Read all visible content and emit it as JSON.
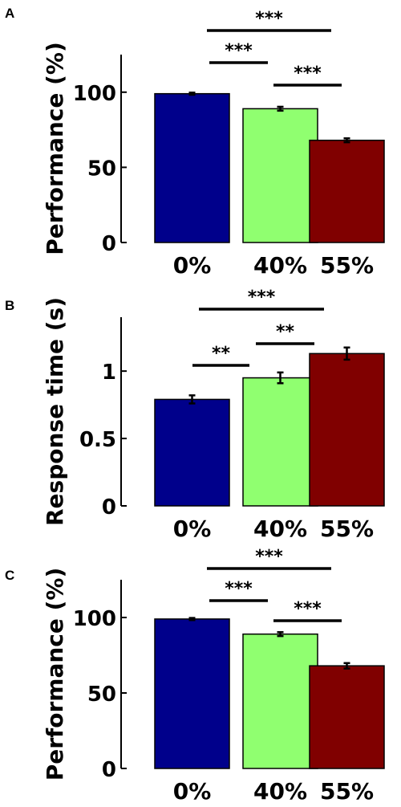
{
  "colors": {
    "bar_0": "#00008b",
    "bar_40": "#90ff70",
    "bar_55": "#800000"
  },
  "chart_data": [
    {
      "panel": "A",
      "type": "bar",
      "ylabel": "Performance (%)",
      "categories": [
        "0%",
        "40%",
        "55%"
      ],
      "values": [
        99,
        89,
        68
      ],
      "errors": [
        0.7,
        1.3,
        1.3
      ],
      "ylim": [
        0,
        125
      ],
      "yticks": [
        0,
        50,
        100
      ],
      "ytick_labels": [
        "0",
        "50",
        "100"
      ],
      "significance": [
        {
          "from": 0,
          "to": 2,
          "label": "***"
        },
        {
          "from": 0,
          "to": 1,
          "label": "***"
        },
        {
          "from": 1,
          "to": 2,
          "label": "***"
        }
      ]
    },
    {
      "panel": "B",
      "type": "bar",
      "ylabel": "Response time (s)",
      "categories": [
        "0%",
        "40%",
        "55%"
      ],
      "values": [
        0.79,
        0.95,
        1.13
      ],
      "errors": [
        0.03,
        0.04,
        0.045
      ],
      "ylim": [
        0,
        1.4
      ],
      "yticks": [
        0,
        0.5,
        1
      ],
      "ytick_labels": [
        "0",
        "0.5",
        "1"
      ],
      "significance": [
        {
          "from": 0,
          "to": 2,
          "label": "***"
        },
        {
          "from": 0,
          "to": 1,
          "label": "**"
        },
        {
          "from": 1,
          "to": 2,
          "label": "**"
        }
      ]
    },
    {
      "panel": "C",
      "type": "bar",
      "ylabel": "Performance (%)",
      "categories": [
        "0%",
        "40%",
        "55%"
      ],
      "values": [
        99,
        89,
        68
      ],
      "errors": [
        0.7,
        1.3,
        1.8
      ],
      "ylim": [
        0,
        125
      ],
      "yticks": [
        0,
        50,
        100
      ],
      "ytick_labels": [
        "0",
        "50",
        "100"
      ],
      "significance": [
        {
          "from": 0,
          "to": 2,
          "label": "***"
        },
        {
          "from": 0,
          "to": 1,
          "label": "***"
        },
        {
          "from": 1,
          "to": 2,
          "label": "***"
        }
      ]
    }
  ]
}
